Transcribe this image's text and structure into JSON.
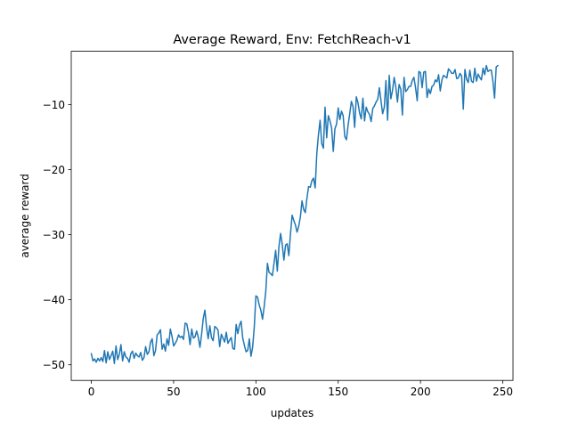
{
  "chart_data": {
    "type": "line",
    "title": "Average Reward, Env: FetchReach-v1",
    "xlabel": "updates",
    "ylabel": "average reward",
    "xlim": [
      -12.2,
      256.2
    ],
    "ylim": [
      -52.4,
      -1.8
    ],
    "x_ticks": [
      0,
      50,
      100,
      150,
      200,
      250
    ],
    "y_ticks": [
      -50,
      -40,
      -30,
      -20,
      -10
    ],
    "x_tick_labels": [
      "0",
      "50",
      "100",
      "150",
      "200",
      "250"
    ],
    "y_tick_labels": [
      "−50",
      "−40",
      "−30",
      "−20",
      "−10"
    ],
    "grid": false,
    "legend": "none",
    "series": [
      {
        "color": "#1f77b4",
        "x_start": 0,
        "x_step": 1,
        "values": [
          -48.3,
          -49.4,
          -49.1,
          -49.6,
          -49.0,
          -49.4,
          -48.9,
          -49.5,
          -47.8,
          -49.7,
          -48.0,
          -49.2,
          -48.6,
          -47.9,
          -49.8,
          -47.1,
          -49.2,
          -48.4,
          -46.9,
          -49.4,
          -48.0,
          -48.8,
          -49.0,
          -49.6,
          -48.3,
          -47.9,
          -49.0,
          -48.2,
          -48.6,
          -48.8,
          -48.1,
          -49.3,
          -48.9,
          -47.2,
          -48.4,
          -48.0,
          -46.5,
          -46.0,
          -48.6,
          -47.8,
          -45.4,
          -45.1,
          -44.6,
          -47.6,
          -46.8,
          -47.9,
          -46.0,
          -47.0,
          -44.5,
          -45.6,
          -47.1,
          -46.7,
          -46.2,
          -45.4,
          -45.8,
          -45.6,
          -46.1,
          -43.6,
          -43.7,
          -45.0,
          -46.9,
          -44.5,
          -45.9,
          -45.7,
          -44.8,
          -45.8,
          -47.3,
          -45.3,
          -42.9,
          -41.6,
          -44.2,
          -46.0,
          -44.0,
          -45.8,
          -46.3,
          -44.1,
          -44.3,
          -44.7,
          -47.2,
          -45.3,
          -45.9,
          -46.5,
          -45.0,
          -46.7,
          -46.2,
          -45.8,
          -47.5,
          -47.6,
          -43.8,
          -45.2,
          -43.9,
          -43.3,
          -45.9,
          -47.0,
          -48.0,
          -47.8,
          -46.0,
          -48.7,
          -47.3,
          -44.2,
          -39.4,
          -39.6,
          -40.8,
          -41.6,
          -43.0,
          -41.1,
          -38.7,
          -34.4,
          -35.8,
          -36.0,
          -36.3,
          -34.4,
          -32.4,
          -35.6,
          -31.8,
          -29.8,
          -31.5,
          -33.9,
          -31.6,
          -31.4,
          -33.2,
          -29.9,
          -27.0,
          -27.8,
          -28.5,
          -29.6,
          -28.7,
          -27.3,
          -24.8,
          -26.1,
          -26.6,
          -24.4,
          -22.6,
          -22.7,
          -21.7,
          -21.3,
          -22.8,
          -17.5,
          -14.6,
          -12.4,
          -16.0,
          -16.7,
          -10.4,
          -15.1,
          -11.7,
          -12.5,
          -13.6,
          -17.2,
          -13.7,
          -13.0,
          -10.5,
          -12.3,
          -11.0,
          -11.7,
          -14.9,
          -15.4,
          -13.2,
          -11.4,
          -9.5,
          -10.3,
          -13.5,
          -8.8,
          -9.7,
          -11.3,
          -12.2,
          -9.0,
          -12.5,
          -10.4,
          -11.1,
          -11.5,
          -12.6,
          -10.6,
          -10.2,
          -9.6,
          -9.2,
          -7.4,
          -9.4,
          -11.4,
          -10.4,
          -6.3,
          -12.4,
          -5.5,
          -9.1,
          -7.8,
          -5.8,
          -7.3,
          -9.6,
          -6.9,
          -7.6,
          -11.6,
          -5.8,
          -8.0,
          -7.7,
          -7.2,
          -7.2,
          -6.3,
          -5.8,
          -7.4,
          -9.4,
          -4.9,
          -5.1,
          -7.4,
          -5.0,
          -4.9,
          -8.9,
          -7.6,
          -8.3,
          -7.2,
          -7.0,
          -6.2,
          -6.5,
          -5.4,
          -7.9,
          -6.2,
          -5.5,
          -5.7,
          -5.9,
          -4.5,
          -4.8,
          -5.2,
          -5.2,
          -4.6,
          -6.0,
          -5.9,
          -5.2,
          -5.6,
          -10.7,
          -4.6,
          -6.1,
          -6.6,
          -4.7,
          -6.4,
          -6.6,
          -4.4,
          -6.4,
          -5.3,
          -5.8,
          -6.2,
          -4.4,
          -5.4,
          -4.0,
          -4.9,
          -4.7,
          -4.7,
          -6.4,
          -9.0,
          -4.2,
          -4.0
        ]
      }
    ]
  }
}
